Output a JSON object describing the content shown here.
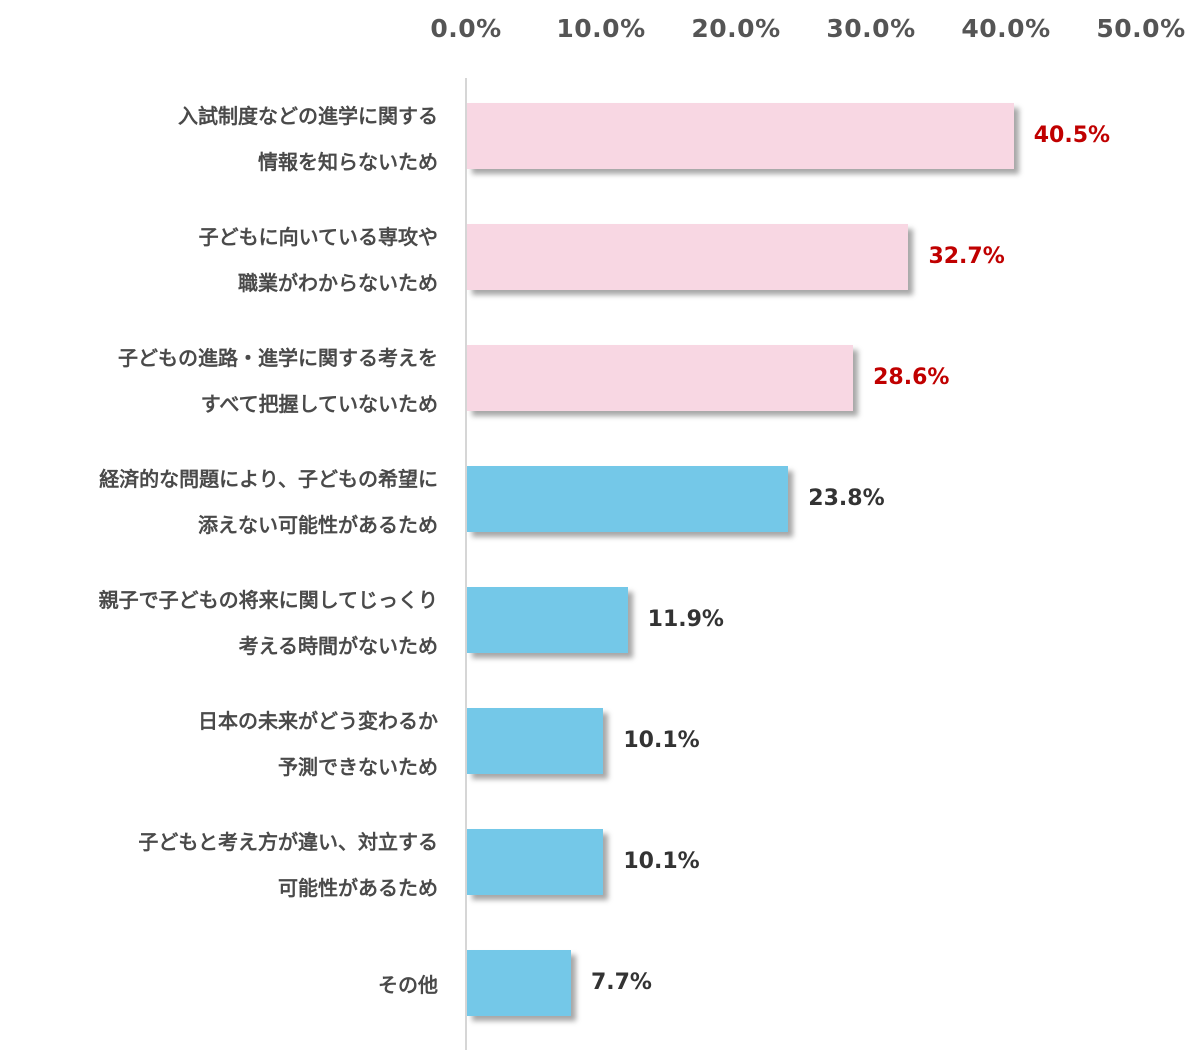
{
  "chart_data": {
    "type": "bar",
    "orientation": "horizontal",
    "title": "",
    "xlabel": "",
    "ylabel": "",
    "xlim": [
      0,
      50
    ],
    "x_ticks": [
      "0.0%",
      "10.0%",
      "20.0%",
      "30.0%",
      "40.0%",
      "50.0%"
    ],
    "x_axis_position": "top",
    "grid": false,
    "legend": null,
    "categories": [
      "入試制度などの進学に関する情報を知らないため",
      "子どもに向いている専攻や職業がわからないため",
      "子どもの進路・進学に関する考えをすべて把握していないため",
      "経済的な問題により、子どもの希望に添えない可能性があるため",
      "親子で子どもの将来に関してじっくり考える時間がないため",
      "日本の未来がどう変わるか予測できないため",
      "子どもと考え方が違い、対立する可能性があるため",
      "その他"
    ],
    "values": [
      40.5,
      32.7,
      28.6,
      23.8,
      11.9,
      10.1,
      10.1,
      7.7
    ],
    "value_labels": [
      "40.5%",
      "32.7%",
      "28.6%",
      "23.8%",
      "11.9%",
      "10.1%",
      "10.1%",
      "7.7%"
    ],
    "highlighted_top_n": 3
  },
  "colors": {
    "highlight_bar": "#f8d7e3",
    "normal_bar": "#74c8e8",
    "highlight_value_text": "#c00000",
    "normal_value_text": "#333333",
    "axis_text": "#555555",
    "axis_line": "#d6d6d6"
  },
  "axis": {
    "ticks": [
      "0.0%",
      "10.0%",
      "20.0%",
      "30.0%",
      "40.0%",
      "50.0%"
    ]
  },
  "rows": [
    {
      "line1": "入試制度などの進学に関する",
      "line2": "情報を知らないため",
      "value": "40.5%"
    },
    {
      "line1": "子どもに向いている専攻や",
      "line2": "職業がわからないため",
      "value": "32.7%"
    },
    {
      "line1": "子どもの進路・進学に関する考えを",
      "line2": "すべて把握していないため",
      "value": "28.6%"
    },
    {
      "line1": "経済的な問題により、子どもの希望に",
      "line2": "添えない可能性があるため",
      "value": "23.8%"
    },
    {
      "line1": "親子で子どもの将来に関してじっくり",
      "line2": "考える時間がないため",
      "value": "11.9%"
    },
    {
      "line1": "日本の未来がどう変わるか",
      "line2": "予測できないため",
      "value": "10.1%"
    },
    {
      "line1": "子どもと考え方が違い、対立する",
      "line2": "可能性があるため",
      "value": "10.1%"
    },
    {
      "line1": "その他",
      "line2": "",
      "value": "7.7%"
    }
  ]
}
